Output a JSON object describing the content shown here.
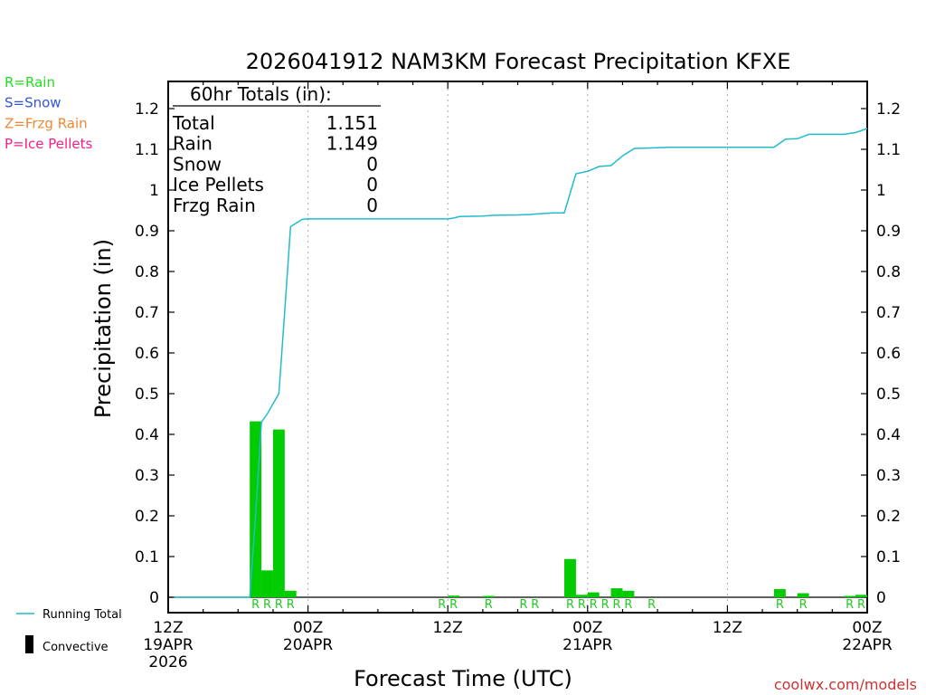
{
  "chart_data": {
    "type": "bar",
    "title": "2026041912 NAM3KM Forecast Precipitation KFXE",
    "xlabel": "Forecast Time (UTC)",
    "ylabel": "Precipitation (in)",
    "ylim": [
      -0.04,
      1.25
    ],
    "xlim_hours": [
      0,
      60
    ],
    "y_ticks": [
      0,
      0.1,
      0.2,
      0.3,
      0.4,
      0.5,
      0.6,
      0.7,
      0.8,
      0.9,
      1,
      1.1,
      1.2
    ],
    "y_tick_labels": [
      "0",
      "0.1",
      "0.2",
      "0.3",
      "0.4",
      "0.5",
      "0.6",
      "0.7",
      "0.8",
      "0.9",
      "1",
      "1.1",
      "1.2"
    ],
    "x_ticks": [
      {
        "hour": 0,
        "line1": "12Z",
        "line2": "19APR",
        "line3": "2026"
      },
      {
        "hour": 12,
        "line1": "00Z",
        "line2": "20APR",
        "line3": ""
      },
      {
        "hour": 24,
        "line1": "12Z",
        "line2": "",
        "line3": ""
      },
      {
        "hour": 36,
        "line1": "00Z",
        "line2": "21APR",
        "line3": ""
      },
      {
        "hour": 48,
        "line1": "12Z",
        "line2": "",
        "line3": ""
      },
      {
        "hour": 60,
        "line1": "00Z",
        "line2": "22APR",
        "line3": ""
      }
    ],
    "gridlines_hours": [
      12,
      24,
      36,
      48
    ],
    "bars": [
      {
        "hour": 8,
        "value": 0.432,
        "convective": 0,
        "ptype": "R"
      },
      {
        "hour": 9,
        "value": 0.066,
        "convective": 0,
        "ptype": "R"
      },
      {
        "hour": 10,
        "value": 0.412,
        "convective": 0,
        "ptype": "R"
      },
      {
        "hour": 11,
        "value": 0.016,
        "convective": 0,
        "ptype": "R"
      },
      {
        "hour": 24,
        "value": 0.0,
        "convective": 0,
        "ptype": "R"
      },
      {
        "hour": 25,
        "value": 0.004,
        "convective": 0,
        "ptype": "R"
      },
      {
        "hour": 28,
        "value": 0.003,
        "convective": 0,
        "ptype": "R"
      },
      {
        "hour": 31,
        "value": 0.0,
        "convective": 0,
        "ptype": "R"
      },
      {
        "hour": 32,
        "value": 0.0,
        "convective": 0,
        "ptype": "R"
      },
      {
        "hour": 35,
        "value": 0.094,
        "convective": 0,
        "ptype": "R"
      },
      {
        "hour": 36,
        "value": 0.006,
        "convective": 0,
        "ptype": "R"
      },
      {
        "hour": 37,
        "value": 0.012,
        "convective": 0,
        "ptype": "R"
      },
      {
        "hour": 38,
        "value": 0.0,
        "convective": 0,
        "ptype": "R"
      },
      {
        "hour": 39,
        "value": 0.022,
        "convective": 0,
        "ptype": "R"
      },
      {
        "hour": 40,
        "value": 0.016,
        "convective": 0,
        "ptype": "R"
      },
      {
        "hour": 42,
        "value": 0.0,
        "convective": 0,
        "ptype": "R"
      },
      {
        "hour": 53,
        "value": 0.02,
        "convective": 0,
        "ptype": "R"
      },
      {
        "hour": 55,
        "value": 0.01,
        "convective": 0,
        "ptype": "R"
      },
      {
        "hour": 59,
        "value": 0.002,
        "convective": 0,
        "ptype": "R"
      },
      {
        "hour": 60,
        "value": 0.006,
        "convective": 0,
        "ptype": "R"
      }
    ],
    "running_total": [
      [
        0.5,
        0.0
      ],
      [
        7,
        0.0
      ],
      [
        7.5,
        0.2
      ],
      [
        8,
        0.43
      ],
      [
        8.5,
        0.45
      ],
      [
        9,
        0.475
      ],
      [
        9.5,
        0.5
      ],
      [
        10,
        0.7
      ],
      [
        10.5,
        0.91
      ],
      [
        11.5,
        0.928
      ],
      [
        12,
        0.929
      ],
      [
        24,
        0.929
      ],
      [
        24.5,
        0.931
      ],
      [
        25,
        0.935
      ],
      [
        27,
        0.936
      ],
      [
        28,
        0.938
      ],
      [
        30,
        0.939
      ],
      [
        31,
        0.94
      ],
      [
        32,
        0.942
      ],
      [
        33,
        0.944
      ],
      [
        34,
        0.944
      ],
      [
        35,
        1.04
      ],
      [
        36,
        1.046
      ],
      [
        37,
        1.058
      ],
      [
        38,
        1.06
      ],
      [
        39,
        1.084
      ],
      [
        40,
        1.102
      ],
      [
        42,
        1.104
      ],
      [
        43,
        1.105
      ],
      [
        52,
        1.105
      ],
      [
        53,
        1.125
      ],
      [
        54,
        1.126
      ],
      [
        55,
        1.137
      ],
      [
        56,
        1.137
      ],
      [
        58,
        1.137
      ],
      [
        59,
        1.141
      ],
      [
        60,
        1.151
      ]
    ],
    "totals": {
      "header": "60hr Totals (in):",
      "rows": [
        {
          "label": "Total",
          "value": "1.151"
        },
        {
          "label": "Rain",
          "value": "1.149"
        },
        {
          "label": "Snow",
          "value": "0"
        },
        {
          "label": "Ice Pellets",
          "value": "0"
        },
        {
          "label": "Frzg Rain",
          "value": "0"
        }
      ]
    },
    "ptype_legend": [
      {
        "text": "R=Rain",
        "color": "#22dd22"
      },
      {
        "text": "S=Snow",
        "color": "#3355dd"
      },
      {
        "text": "Z=Frzg Rain",
        "color": "#ee8833"
      },
      {
        "text": "P=Ice Pellets",
        "color": "#ee2288"
      }
    ],
    "legend": {
      "running_total": "Running Total",
      "convective": "Convective"
    },
    "watermark": "coolwx.com/models",
    "colors": {
      "bar": "#00cc00",
      "convective": "#000000",
      "running_total": "#22bbcc",
      "ptype_label": "#22cc22",
      "watermark": "#cc3333",
      "grid": "#aaaaaa"
    }
  }
}
